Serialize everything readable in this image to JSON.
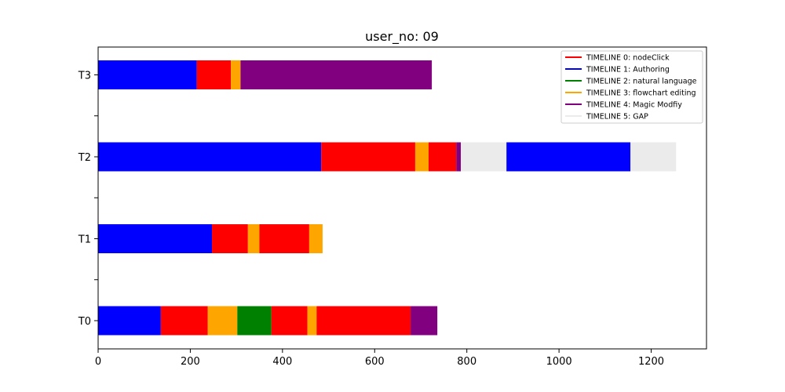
{
  "chart_data": {
    "type": "bar",
    "orientation": "horizontal-stacked-timeline",
    "title": "user_no: 09",
    "xlabel": "",
    "ylabel": "",
    "xlim": [
      0,
      1320
    ],
    "x_ticks": [
      0,
      200,
      400,
      600,
      800,
      1000,
      1200
    ],
    "categories": [
      "T0",
      "T1",
      "T2",
      "T3"
    ],
    "legend_position": "top-right",
    "series": [
      {
        "name": "TIMELINE 0: nodeClick",
        "color": "#ff0000"
      },
      {
        "name": "TIMELINE 1: Authoring",
        "color": "#0000ff"
      },
      {
        "name": "TIMELINE 2: natural language",
        "color": "#008000"
      },
      {
        "name": "TIMELINE 3: flowchart editing",
        "color": "#ffa500"
      },
      {
        "name": "TIMELINE 4: Magic Modfiy",
        "color": "#800080"
      },
      {
        "name": "TIMELINE 5: GAP",
        "color": "#ebebeb"
      }
    ],
    "rows": [
      {
        "category": "T0",
        "segments": [
          {
            "series": 1,
            "start": 0,
            "end": 136
          },
          {
            "series": 0,
            "start": 136,
            "end": 238
          },
          {
            "series": 3,
            "start": 238,
            "end": 302
          },
          {
            "series": 2,
            "start": 302,
            "end": 376
          },
          {
            "series": 0,
            "start": 376,
            "end": 454
          },
          {
            "series": 3,
            "start": 454,
            "end": 474
          },
          {
            "series": 0,
            "start": 474,
            "end": 678
          },
          {
            "series": 4,
            "start": 678,
            "end": 736
          }
        ]
      },
      {
        "category": "T1",
        "segments": [
          {
            "series": 1,
            "start": 0,
            "end": 247
          },
          {
            "series": 0,
            "start": 247,
            "end": 325
          },
          {
            "series": 3,
            "start": 325,
            "end": 350
          },
          {
            "series": 0,
            "start": 350,
            "end": 458
          },
          {
            "series": 3,
            "start": 458,
            "end": 487
          }
        ]
      },
      {
        "category": "T2",
        "segments": [
          {
            "series": 1,
            "start": 0,
            "end": 484
          },
          {
            "series": 0,
            "start": 484,
            "end": 688
          },
          {
            "series": 3,
            "start": 688,
            "end": 717
          },
          {
            "series": 0,
            "start": 717,
            "end": 777
          },
          {
            "series": 4,
            "start": 777,
            "end": 787
          },
          {
            "series": 5,
            "start": 787,
            "end": 886
          },
          {
            "series": 1,
            "start": 886,
            "end": 1155
          },
          {
            "series": 5,
            "start": 1155,
            "end": 1254
          }
        ]
      },
      {
        "category": "T3",
        "segments": [
          {
            "series": 1,
            "start": 0,
            "end": 214
          },
          {
            "series": 0,
            "start": 214,
            "end": 288
          },
          {
            "series": 3,
            "start": 288,
            "end": 309
          },
          {
            "series": 4,
            "start": 309,
            "end": 724
          }
        ]
      }
    ]
  }
}
